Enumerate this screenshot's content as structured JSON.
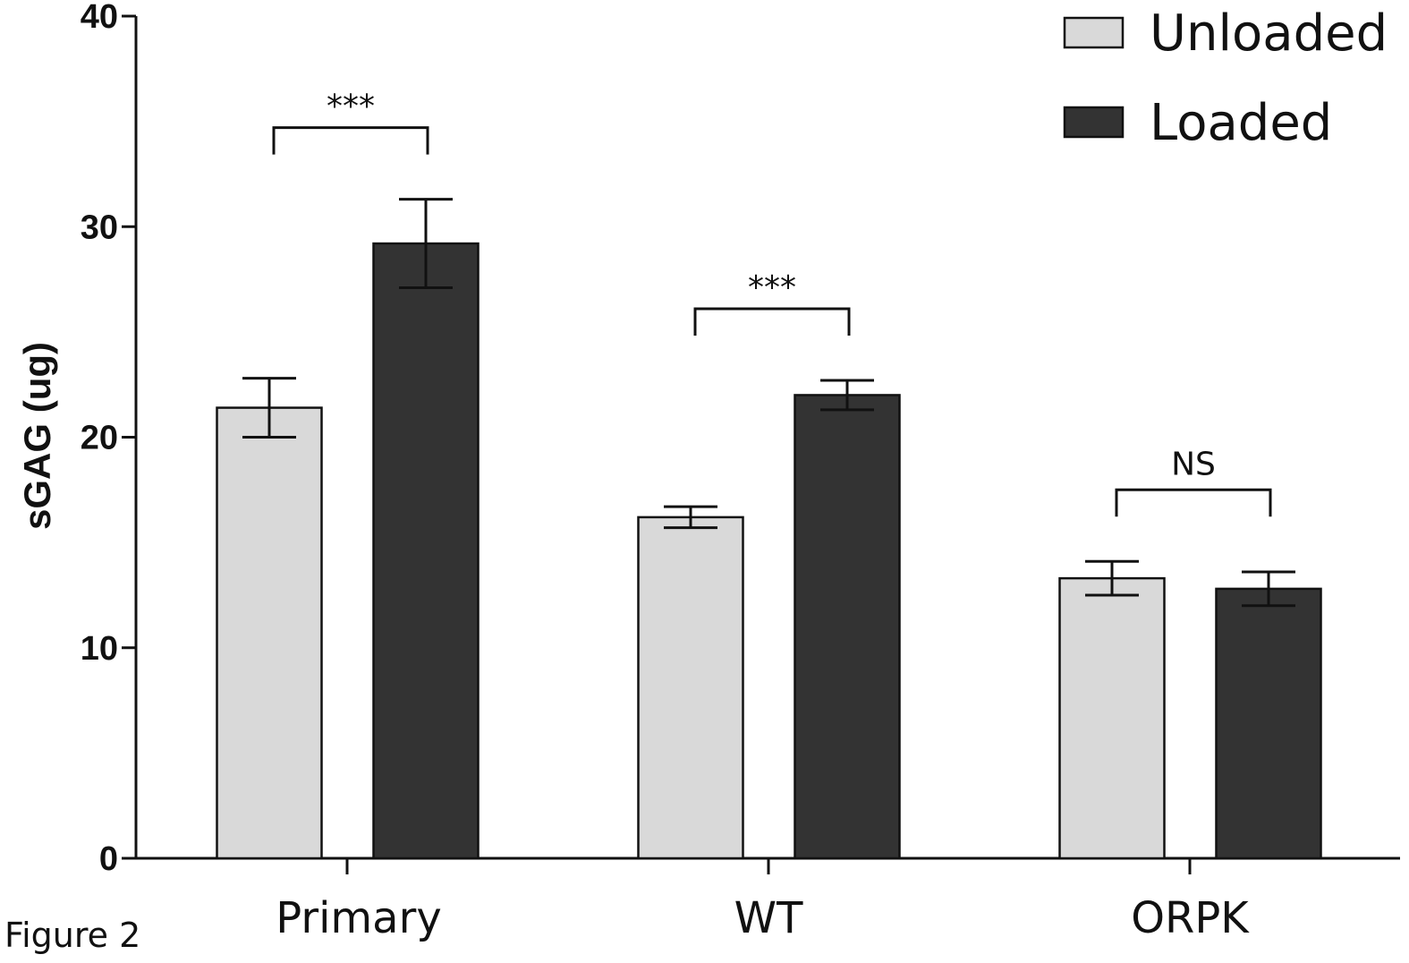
{
  "chart_data": {
    "type": "bar",
    "title": "",
    "xlabel": "",
    "ylabel": "sGAG (ug)",
    "ylim": [
      0,
      40
    ],
    "yticks": [
      0,
      10,
      20,
      30,
      40
    ],
    "categories": [
      "Primary",
      "WT",
      "ORPK"
    ],
    "series": [
      {
        "name": "Unloaded",
        "color": "#d9d9d9",
        "values": [
          21.4,
          16.2,
          13.3
        ],
        "errors": [
          1.4,
          0.5,
          0.8
        ]
      },
      {
        "name": "Loaded",
        "color": "#333333",
        "values": [
          29.2,
          22.0,
          12.8
        ],
        "errors": [
          2.1,
          0.7,
          0.8
        ]
      }
    ],
    "significance": [
      {
        "category": "Primary",
        "label": "***"
      },
      {
        "category": "WT",
        "label": "***"
      },
      {
        "category": "ORPK",
        "label": "NS"
      }
    ],
    "legend_position": "top-right",
    "grid": false
  },
  "figure_label": "Figure 2"
}
